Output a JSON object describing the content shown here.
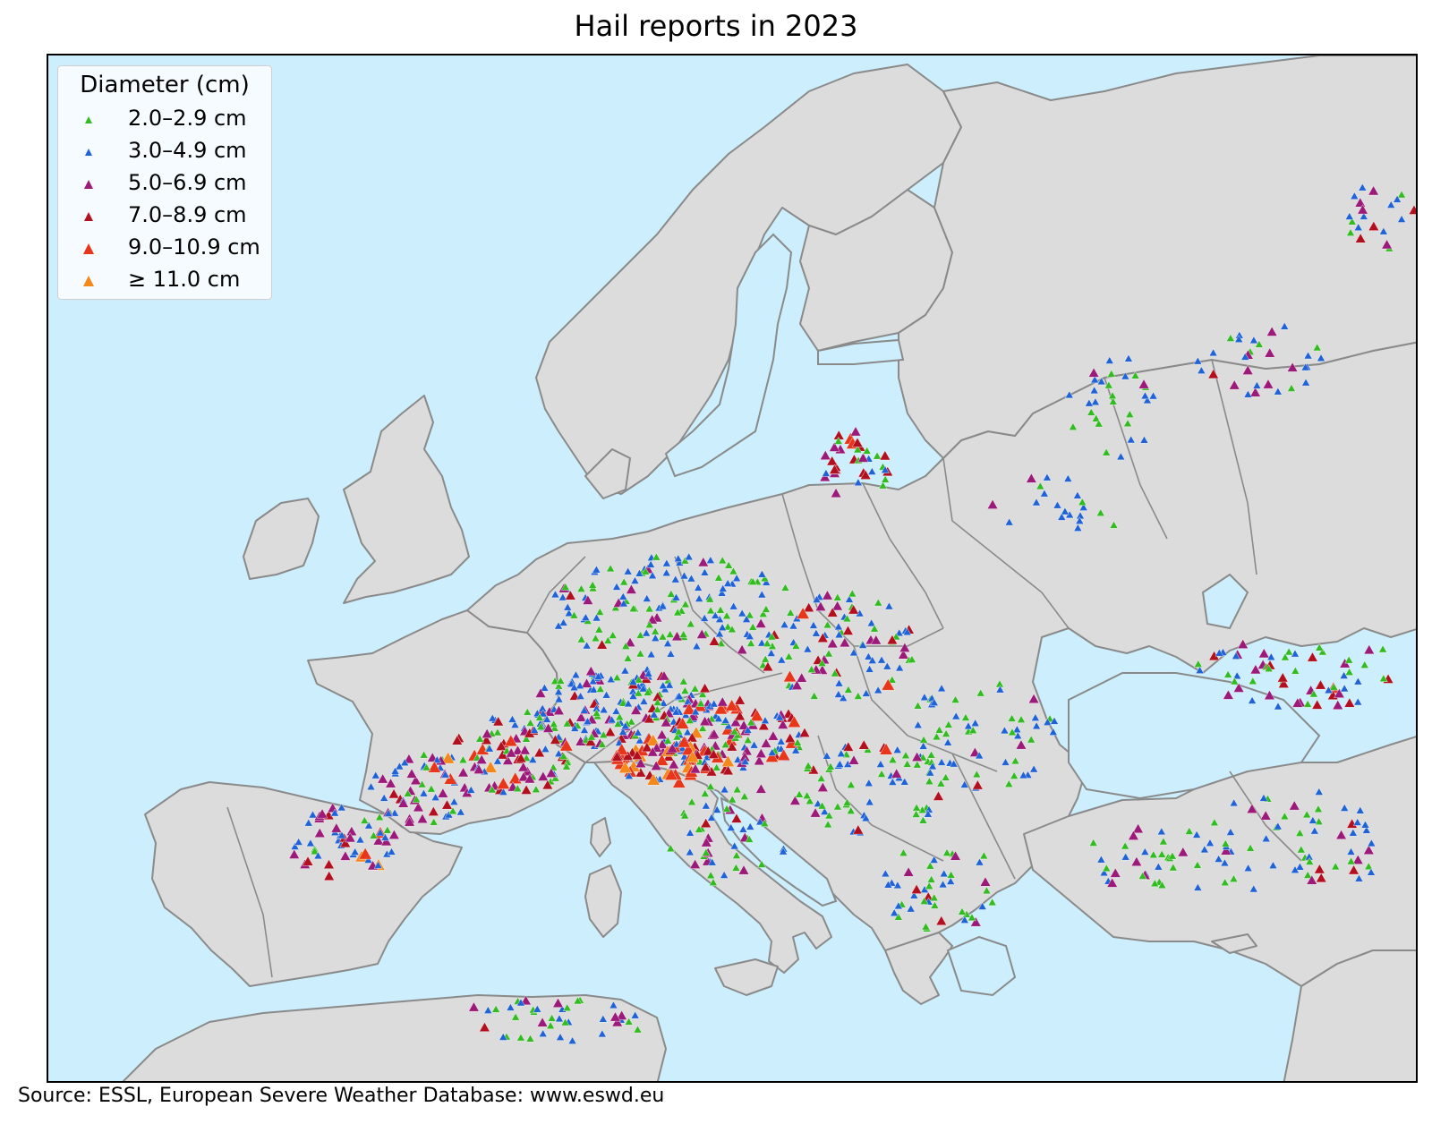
{
  "title": "Hail reports in 2023",
  "legend": {
    "title": "Diameter (cm)",
    "items": [
      {
        "label": "2.0–2.9 cm",
        "color": "#33bb22",
        "size": "small"
      },
      {
        "label": "3.0–4.9 cm",
        "color": "#1f63d6",
        "size": "small"
      },
      {
        "label": "5.0–6.9 cm",
        "color": "#9c1a7a",
        "size": "medium"
      },
      {
        "label": "7.0–8.9 cm",
        "color": "#b3101f",
        "size": "medium"
      },
      {
        "label": "9.0–10.9 cm",
        "color": "#e8361a",
        "size": "large"
      },
      {
        "label": "≥ 11.0 cm",
        "color": "#f5881a",
        "size": "large"
      }
    ]
  },
  "source": "Source: ESSL, European Severe Weather Database: www.eswd.eu",
  "map": {
    "region": "Europe",
    "ocean_color": "#cdeefc",
    "land_color": "#dcdcdc",
    "border_color": "#8a8a8a",
    "marker_shape": "triangle",
    "report_density": [
      {
        "area": "Alps / Northern Italy",
        "dominant_class": "9.0–10.9 cm",
        "density": "very high"
      },
      {
        "area": "Southern France",
        "dominant_class": "5.0–6.9 cm",
        "density": "high"
      },
      {
        "area": "Germany / Central Europe",
        "dominant_class": "3.0–4.9 cm",
        "density": "high"
      },
      {
        "area": "Northern Spain",
        "dominant_class": "5.0–6.9 cm",
        "density": "medium"
      },
      {
        "area": "Balkans",
        "dominant_class": "2.0–2.9 cm",
        "density": "medium"
      },
      {
        "area": "Turkey",
        "dominant_class": "3.0–4.9 cm",
        "density": "medium"
      },
      {
        "area": "Western Russia",
        "dominant_class": "3.0–4.9 cm",
        "density": "low"
      },
      {
        "area": "Lithuania / Latvia",
        "dominant_class": "7.0–8.9 cm",
        "density": "medium"
      },
      {
        "area": "North Africa",
        "dominant_class": "2.0–2.9 cm",
        "density": "low"
      }
    ]
  }
}
